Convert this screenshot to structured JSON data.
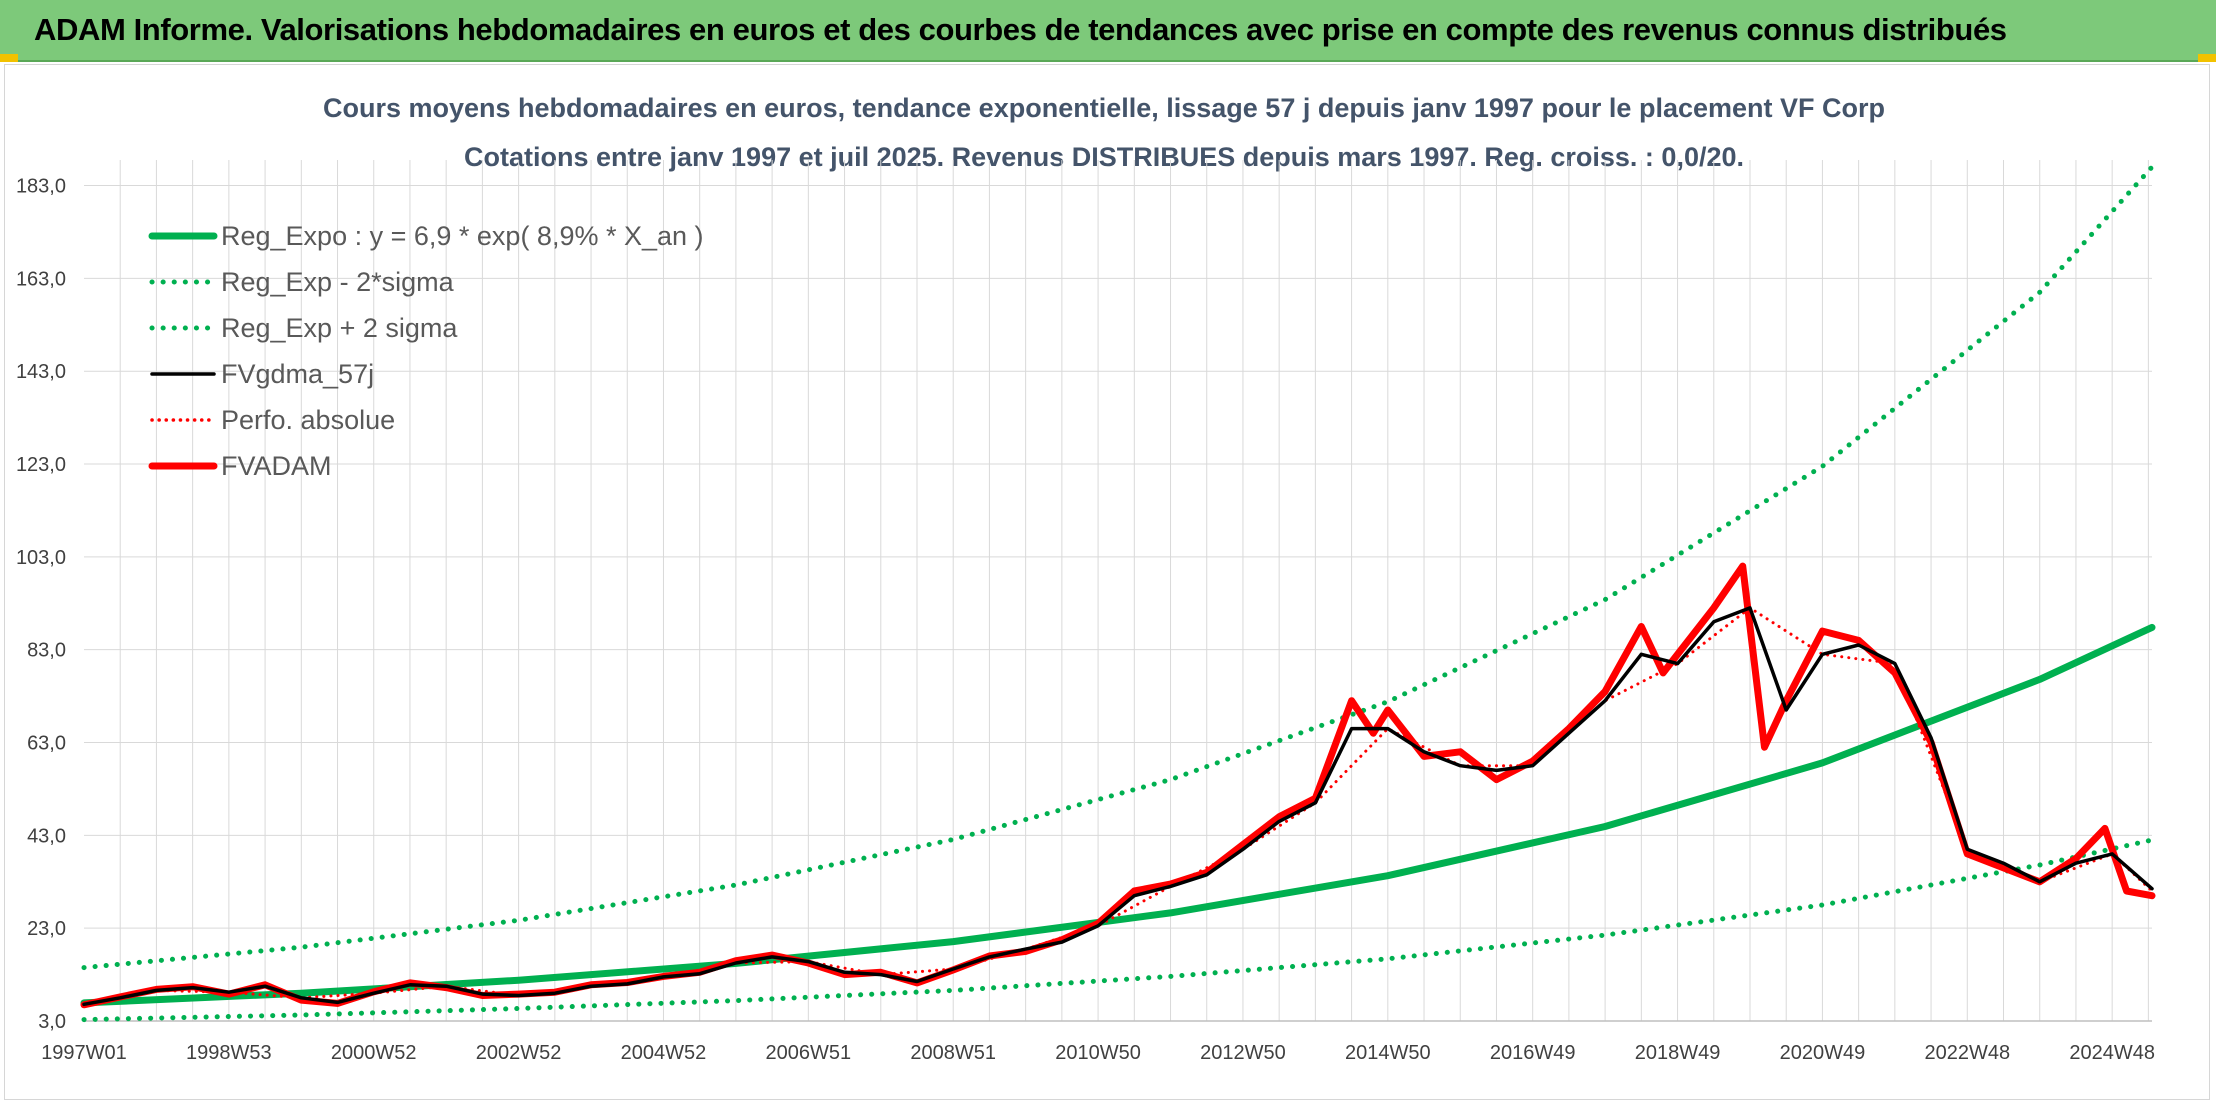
{
  "header": {
    "title": "ADAM Informe. Valorisations hebdomadaires en euros et des courbes de tendances avec prise en compte des revenus connus distribués"
  },
  "colors": {
    "header_bg": "#7dc97a",
    "trend_green": "#00b050",
    "ma_black": "#000000",
    "adam_red": "#ff0000",
    "grid": "#d9d9d9"
  },
  "chart_data": {
    "type": "line",
    "title_line1": "Cours moyens hebdomadaires en euros, tendance exponentielle, lissage 57 j depuis janv 1997 pour le placement VF Corp",
    "title_line2": "Cotations entre janv 1997 et juil 2025. Revenus DISTRIBUES depuis mars 1997. Reg. croiss. : 0,0/20.",
    "xlabel": "",
    "ylabel": "",
    "x_range": [
      1997.0,
      2025.55
    ],
    "ylim": [
      3.0,
      183.0
    ],
    "y_ticks": [
      "3,0",
      "23,0",
      "43,0",
      "63,0",
      "83,0",
      "103,0",
      "123,0",
      "143,0",
      "163,0",
      "183,0"
    ],
    "y_tick_values": [
      3,
      23,
      43,
      63,
      83,
      103,
      123,
      143,
      163,
      183
    ],
    "x_ticks": [
      "1997W01",
      "1998W53",
      "2000W52",
      "2002W52",
      "2004W52",
      "2006W51",
      "2008W51",
      "2010W50",
      "2012W50",
      "2014W50",
      "2016W49",
      "2018W49",
      "2020W49",
      "2022W48",
      "2024W48"
    ],
    "x_tick_values": [
      1997.0,
      1999.0,
      2001.0,
      2003.0,
      2005.0,
      2007.0,
      2009.0,
      2011.0,
      2013.0,
      2015.0,
      2017.0,
      2019.0,
      2021.0,
      2023.0,
      2025.0
    ],
    "grid": true,
    "legend_position": "top-left",
    "series": [
      {
        "name": "Reg_Expo : y = 6,9 * exp( 8,9% *  X_an )",
        "style": "solid-thick",
        "color": "#00b050",
        "x": [
          1997.0,
          2000.0,
          2003.0,
          2006.0,
          2009.0,
          2012.0,
          2015.0,
          2018.0,
          2021.0,
          2024.0,
          2025.55
        ],
        "y": [
          6.9,
          9.0,
          11.8,
          15.4,
          20.1,
          26.3,
          34.3,
          44.9,
          58.6,
          76.6,
          87.8
        ]
      },
      {
        "name": "Reg_Exp - 2*sigma",
        "style": "dotted",
        "color": "#00b050",
        "x": [
          1997.0,
          2000.0,
          2003.0,
          2006.0,
          2009.0,
          2012.0,
          2015.0,
          2018.0,
          2021.0,
          2024.0,
          2025.55
        ],
        "y": [
          3.3,
          4.3,
          5.7,
          7.4,
          9.6,
          12.6,
          16.4,
          21.5,
          28.0,
          36.6,
          42.0
        ]
      },
      {
        "name": "Reg_Exp + 2 sigma",
        "style": "dotted",
        "color": "#00b050",
        "x": [
          1997.0,
          2000.0,
          2003.0,
          2006.0,
          2009.0,
          2012.0,
          2015.0,
          2018.0,
          2021.0,
          2024.0,
          2025.55
        ],
        "y": [
          14.5,
          18.9,
          24.7,
          32.3,
          42.1,
          55.0,
          71.8,
          93.8,
          122.5,
          160.0,
          187.0
        ]
      },
      {
        "name": "FVgdma_57j",
        "style": "solid",
        "color": "#000000",
        "x": [
          1997.0,
          1997.5,
          1998.0,
          1998.5,
          1999.0,
          1999.5,
          2000.0,
          2000.5,
          2001.0,
          2001.5,
          2002.0,
          2002.5,
          2003.0,
          2003.5,
          2004.0,
          2004.5,
          2005.0,
          2005.5,
          2006.0,
          2006.5,
          2007.0,
          2007.5,
          2008.0,
          2008.5,
          2009.0,
          2009.5,
          2010.0,
          2010.5,
          2011.0,
          2011.5,
          2012.0,
          2012.5,
          2013.0,
          2013.5,
          2014.0,
          2014.5,
          2015.0,
          2015.5,
          2016.0,
          2016.5,
          2017.0,
          2017.5,
          2018.0,
          2018.5,
          2019.0,
          2019.5,
          2020.0,
          2020.5,
          2021.0,
          2021.5,
          2022.0,
          2022.5,
          2023.0,
          2023.5,
          2024.0,
          2024.5,
          2025.0,
          2025.55
        ],
        "y": [
          6.6,
          8.0,
          9.6,
          10.2,
          9.2,
          10.5,
          8.0,
          7.0,
          9.0,
          10.8,
          10.5,
          8.8,
          8.5,
          9.0,
          10.5,
          11.0,
          12.5,
          13.2,
          15.5,
          16.8,
          15.8,
          13.5,
          13.0,
          11.5,
          14.2,
          16.8,
          18.5,
          20.0,
          23.5,
          30.0,
          32.0,
          34.5,
          40.0,
          46.0,
          50.0,
          66.0,
          66.0,
          61.0,
          58.0,
          57.0,
          58.0,
          65.0,
          72.0,
          82.0,
          80.0,
          89.0,
          92.0,
          70.0,
          82.0,
          84.0,
          80.0,
          64.0,
          40.0,
          37.0,
          33.0,
          37.0,
          39.0,
          31.5
        ]
      },
      {
        "name": "Perfo. absolue",
        "style": "dotted",
        "color": "#ff0000",
        "x": [
          1997.0,
          1998.0,
          1999.0,
          2000.0,
          2001.0,
          2002.0,
          2003.0,
          2004.0,
          2005.0,
          2006.0,
          2007.0,
          2008.0,
          2009.0,
          2010.0,
          2011.0,
          2012.0,
          2013.0,
          2014.0,
          2015.0,
          2016.0,
          2017.0,
          2018.0,
          2019.0,
          2020.0,
          2021.0,
          2022.0,
          2023.0,
          2024.0,
          2025.0,
          2025.55
        ],
        "y": [
          6.6,
          9.6,
          9.2,
          8.0,
          9.0,
          10.5,
          8.5,
          10.5,
          12.5,
          15.5,
          15.8,
          13.0,
          14.2,
          18.5,
          23.5,
          32.0,
          40.0,
          50.0,
          66.0,
          58.0,
          58.0,
          72.0,
          80.0,
          92.0,
          82.0,
          80.0,
          40.0,
          33.0,
          39.0,
          31.0
        ]
      },
      {
        "name": "FVADAM",
        "style": "solid-thick",
        "color": "#ff0000",
        "x": [
          1997.0,
          1997.5,
          1998.0,
          1998.5,
          1999.0,
          1999.5,
          2000.0,
          2000.5,
          2001.0,
          2001.5,
          2002.0,
          2002.5,
          2003.0,
          2003.5,
          2004.0,
          2004.5,
          2005.0,
          2005.5,
          2006.0,
          2006.5,
          2007.0,
          2007.5,
          2008.0,
          2008.5,
          2009.0,
          2009.5,
          2010.0,
          2010.5,
          2011.0,
          2011.5,
          2012.0,
          2012.5,
          2013.0,
          2013.5,
          2014.0,
          2014.5,
          2014.8,
          2015.0,
          2015.5,
          2016.0,
          2016.5,
          2017.0,
          2017.5,
          2018.0,
          2018.5,
          2018.8,
          2019.0,
          2019.5,
          2019.9,
          2020.2,
          2020.5,
          2021.0,
          2021.5,
          2022.0,
          2022.5,
          2023.0,
          2023.5,
          2024.0,
          2024.5,
          2024.9,
          2025.2,
          2025.55
        ],
        "y": [
          6.5,
          8.2,
          9.8,
          10.4,
          8.8,
          10.8,
          7.5,
          6.8,
          9.3,
          11.2,
          10.2,
          8.5,
          8.8,
          9.2,
          10.8,
          11.3,
          12.6,
          13.5,
          16.0,
          17.2,
          15.5,
          13.0,
          13.5,
          11.2,
          14.0,
          17.0,
          18.0,
          20.5,
          24.0,
          31.0,
          32.5,
          35.0,
          41.0,
          47.0,
          51.0,
          72.0,
          65.0,
          70.0,
          60.0,
          61.0,
          55.0,
          59.0,
          66.0,
          74.0,
          88.0,
          78.0,
          82.0,
          92.0,
          101.0,
          62.0,
          72.0,
          87.0,
          85.0,
          78.0,
          63.0,
          39.0,
          36.0,
          33.0,
          38.0,
          44.5,
          31.0,
          30.0
        ]
      }
    ]
  }
}
